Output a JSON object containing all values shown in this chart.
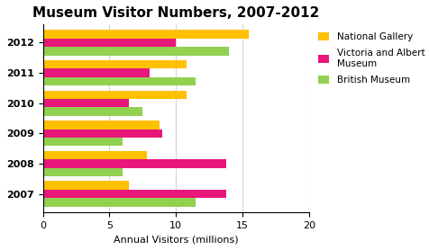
{
  "title": "Museum Visitor Numbers, 2007-2012",
  "xlabel": "Annual Visitors (millions)",
  "years": [
    "2007",
    "2008",
    "2009",
    "2010",
    "2011",
    "2012"
  ],
  "national_gallery": [
    6.5,
    7.8,
    8.8,
    10.8,
    10.8,
    15.5
  ],
  "victoria_albert": [
    13.8,
    13.8,
    9.0,
    6.5,
    8.0,
    10.0
  ],
  "british_museum": [
    11.5,
    6.0,
    6.0,
    7.5,
    11.5,
    14.0
  ],
  "colors": {
    "national_gallery": "#FFC000",
    "victoria_albert": "#E8177A",
    "british_museum": "#92D050"
  },
  "legend_labels": [
    "National Gallery",
    "Victoria and Albert\nMuseum",
    "British Museum"
  ],
  "xlim": [
    0,
    20
  ],
  "xticks": [
    0,
    5,
    10,
    15,
    20
  ],
  "bar_height": 0.28,
  "figsize": [
    4.76,
    2.78
  ],
  "dpi": 100,
  "background_color": "#FFFFFF",
  "title_fontsize": 11,
  "label_fontsize": 8,
  "tick_fontsize": 8,
  "legend_fontsize": 7.5
}
